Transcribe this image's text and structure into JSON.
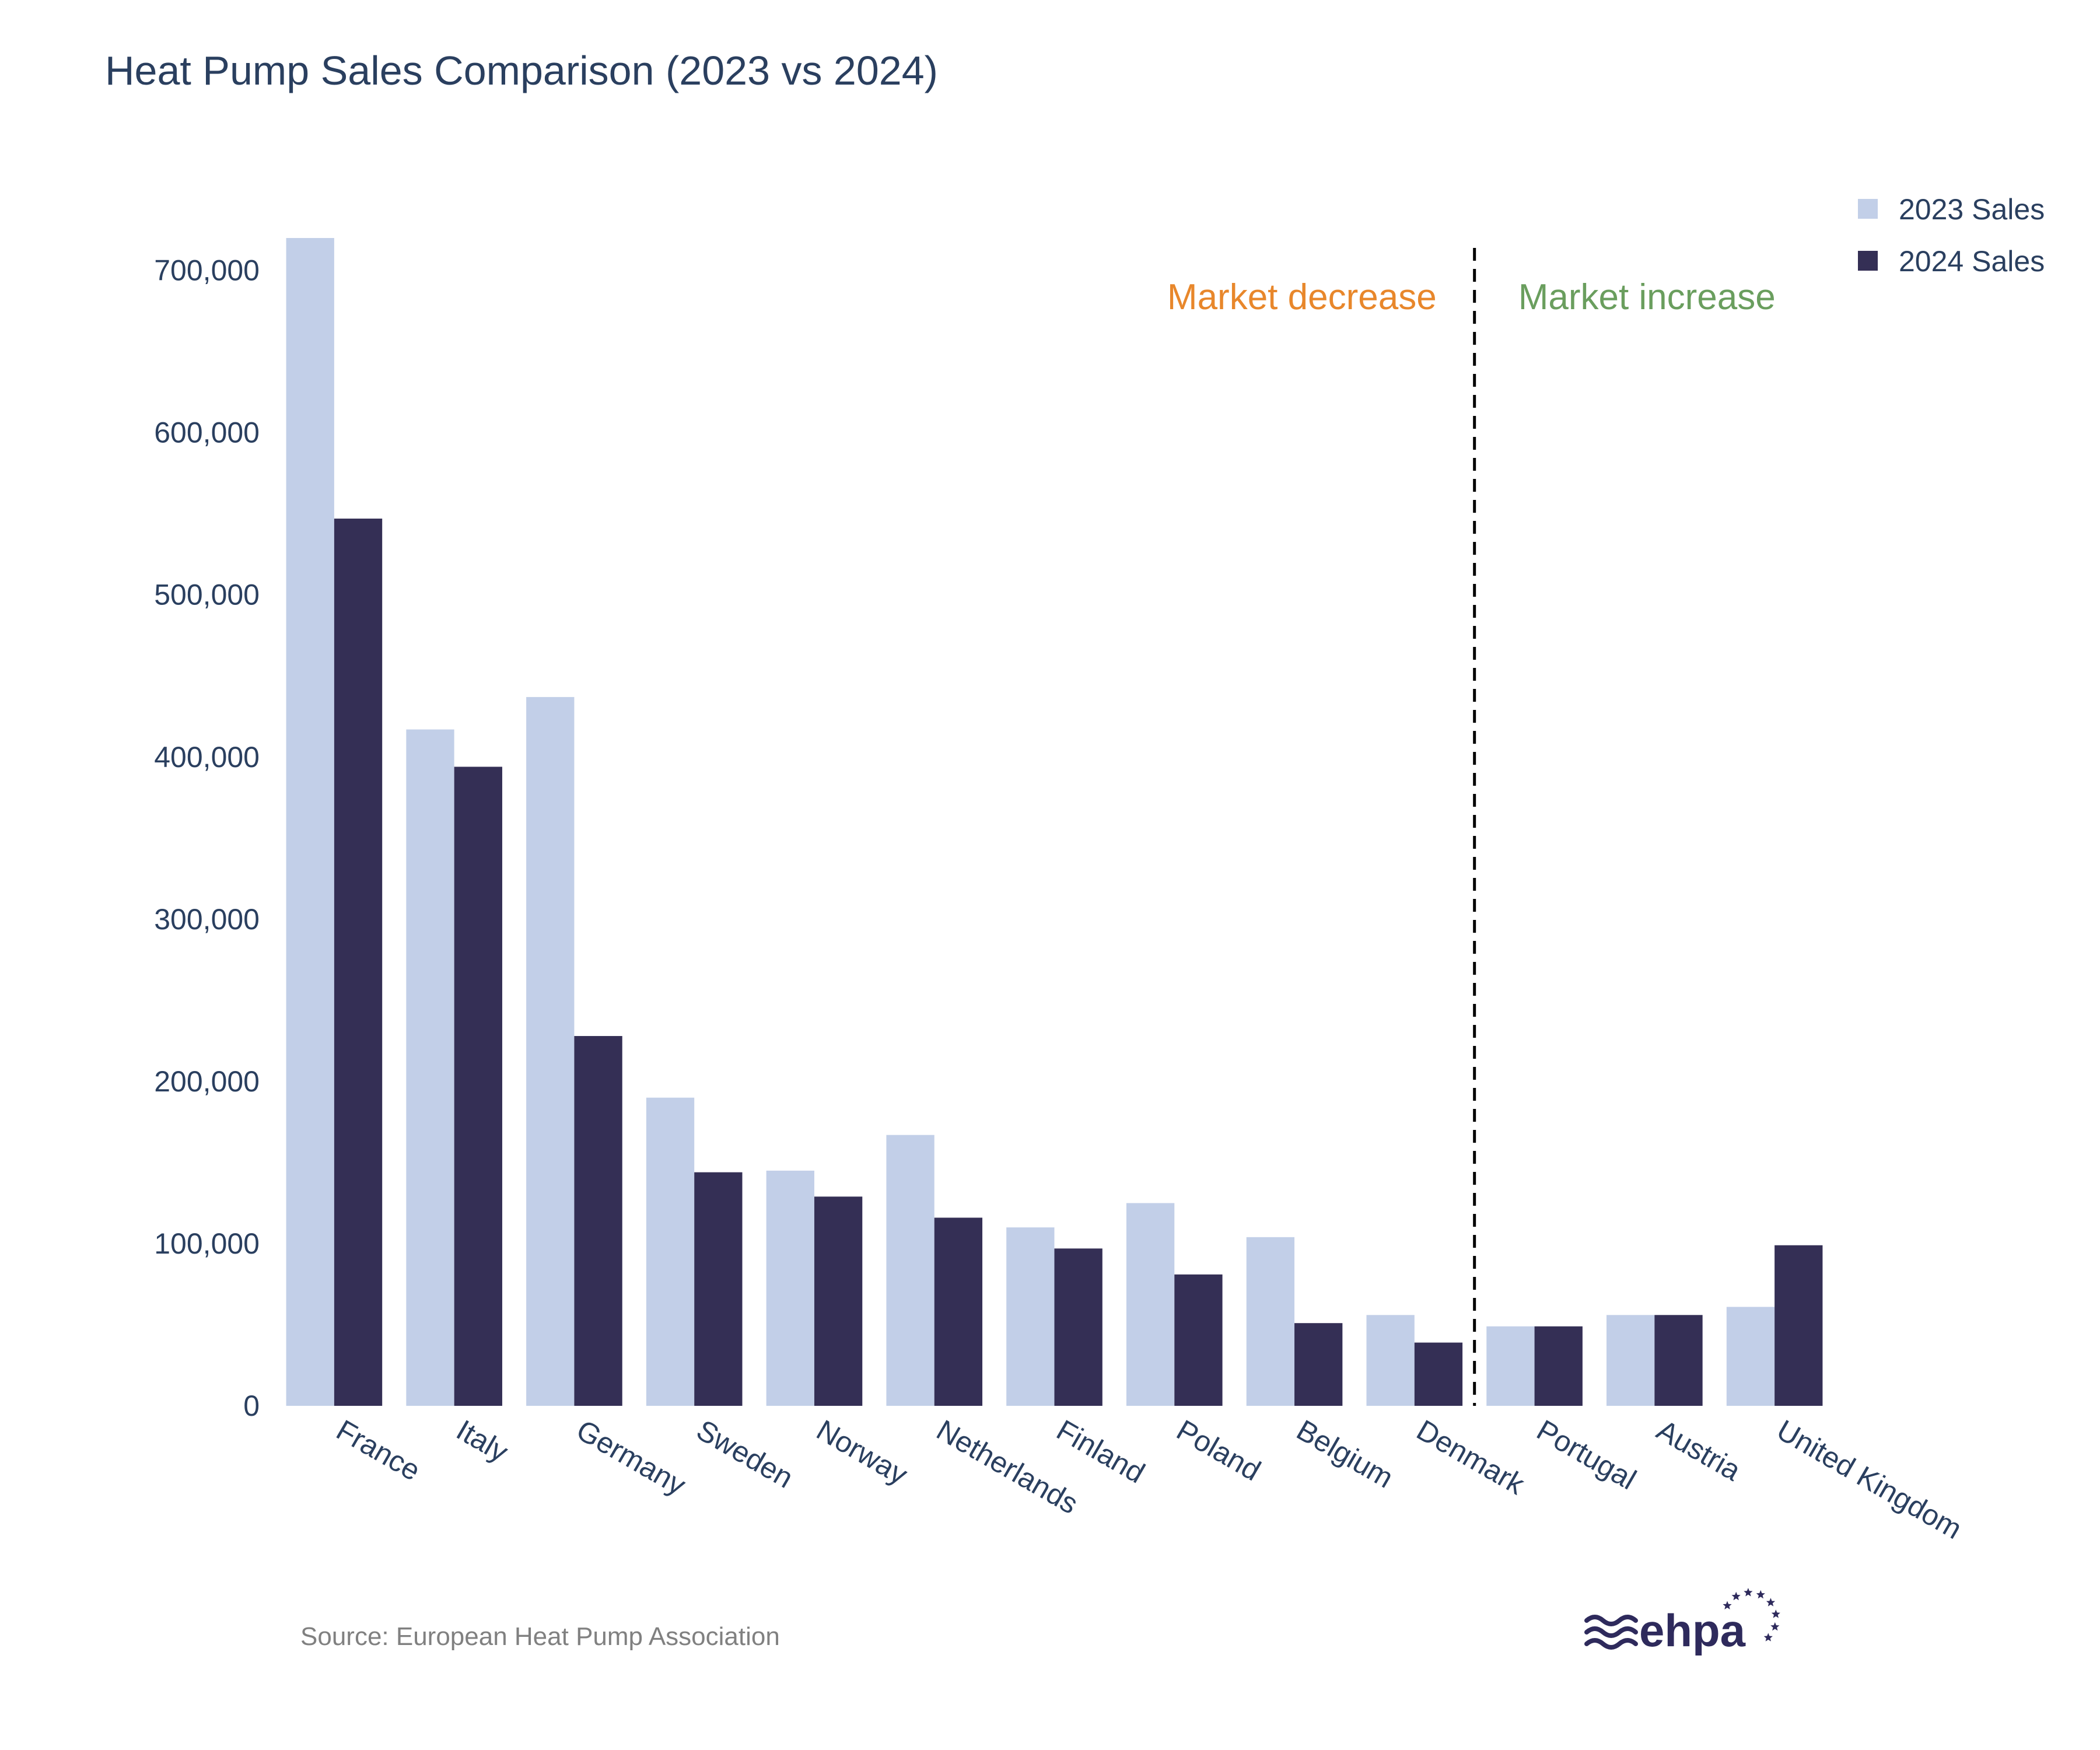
{
  "chart_data": {
    "type": "bar",
    "title": "Heat Pump Sales Comparison (2023 vs 2024)",
    "xlabel": "",
    "ylabel": "",
    "categories": [
      "France",
      "Italy",
      "Germany",
      "Sweden",
      "Norway",
      "Netherlands",
      "Finland",
      "Poland",
      "Belgium",
      "Denmark",
      "Portugal",
      "Austria",
      "United Kingdom"
    ],
    "series": [
      {
        "name": "2023 Sales",
        "color": "#c2cfe8",
        "values": [
          720000,
          417000,
          437000,
          190000,
          145000,
          167000,
          110000,
          125000,
          104000,
          56000,
          49000,
          56000,
          61000
        ]
      },
      {
        "name": "2024 Sales",
        "color": "#342f55",
        "values": [
          547000,
          394000,
          228000,
          144000,
          129000,
          116000,
          97000,
          81000,
          51000,
          39000,
          49000,
          56000,
          99000
        ]
      }
    ],
    "ylim": [
      0,
      720000
    ],
    "yticks": [
      0,
      100000,
      200000,
      300000,
      400000,
      500000,
      600000,
      700000
    ],
    "ytick_labels": [
      "0",
      "100,000",
      "200,000",
      "300,000",
      "400,000",
      "500,000",
      "600,000",
      "700,000"
    ],
    "grid": false,
    "legend_position": "top-right",
    "divider_between": [
      "Denmark",
      "Portugal"
    ],
    "annotations": [
      {
        "text": "Market decrease",
        "color": "#e8872b"
      },
      {
        "text": "Market increase",
        "color": "#6a9e5e"
      }
    ]
  },
  "source_note": "Source: European Heat Pump Association",
  "logo": {
    "text": "ehpa",
    "color": "#2e2a5c"
  }
}
